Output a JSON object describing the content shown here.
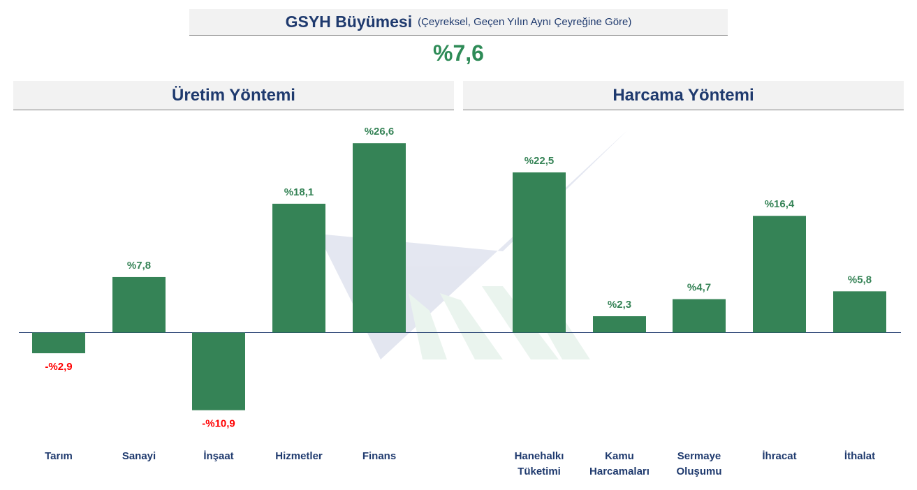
{
  "header": {
    "title": "GSYH Büyümesi",
    "subtitle": "(Çeyreksel, Geçen Yılın Aynı Çeyreğine Göre)",
    "headline_value": "%7,6"
  },
  "sections": {
    "left_title": "Üretim Yöntemi",
    "right_title": "Harcama Yöntemi"
  },
  "colors": {
    "bar": "#358356",
    "positive_label": "#358356",
    "negative_label": "#ff0000",
    "title": "#1f3a6e"
  },
  "chart_data": [
    {
      "type": "bar",
      "title": "Üretim Yöntemi",
      "categories": [
        "Tarım",
        "Sanayi",
        "İnşaat",
        "Hizmetler",
        "Finans"
      ],
      "values": [
        -2.9,
        7.8,
        -10.9,
        18.1,
        26.6
      ],
      "data_labels": [
        "-%2,9",
        "%7,8",
        "-%10,9",
        "%18,1",
        "%26,6"
      ],
      "grid": false,
      "legend": "none"
    },
    {
      "type": "bar",
      "title": "Harcama Yöntemi",
      "categories": [
        "Hanehalkı\nTüketimi",
        "Kamu\nHarcamaları",
        "Sermaye\nOluşumu",
        "İhracat",
        "İthalat"
      ],
      "values": [
        22.5,
        2.3,
        4.7,
        16.4,
        5.8
      ],
      "data_labels": [
        "%22,5",
        "%2,3",
        "%4,7",
        "%16,4",
        "%5,8"
      ],
      "grid": false,
      "legend": "none"
    }
  ]
}
